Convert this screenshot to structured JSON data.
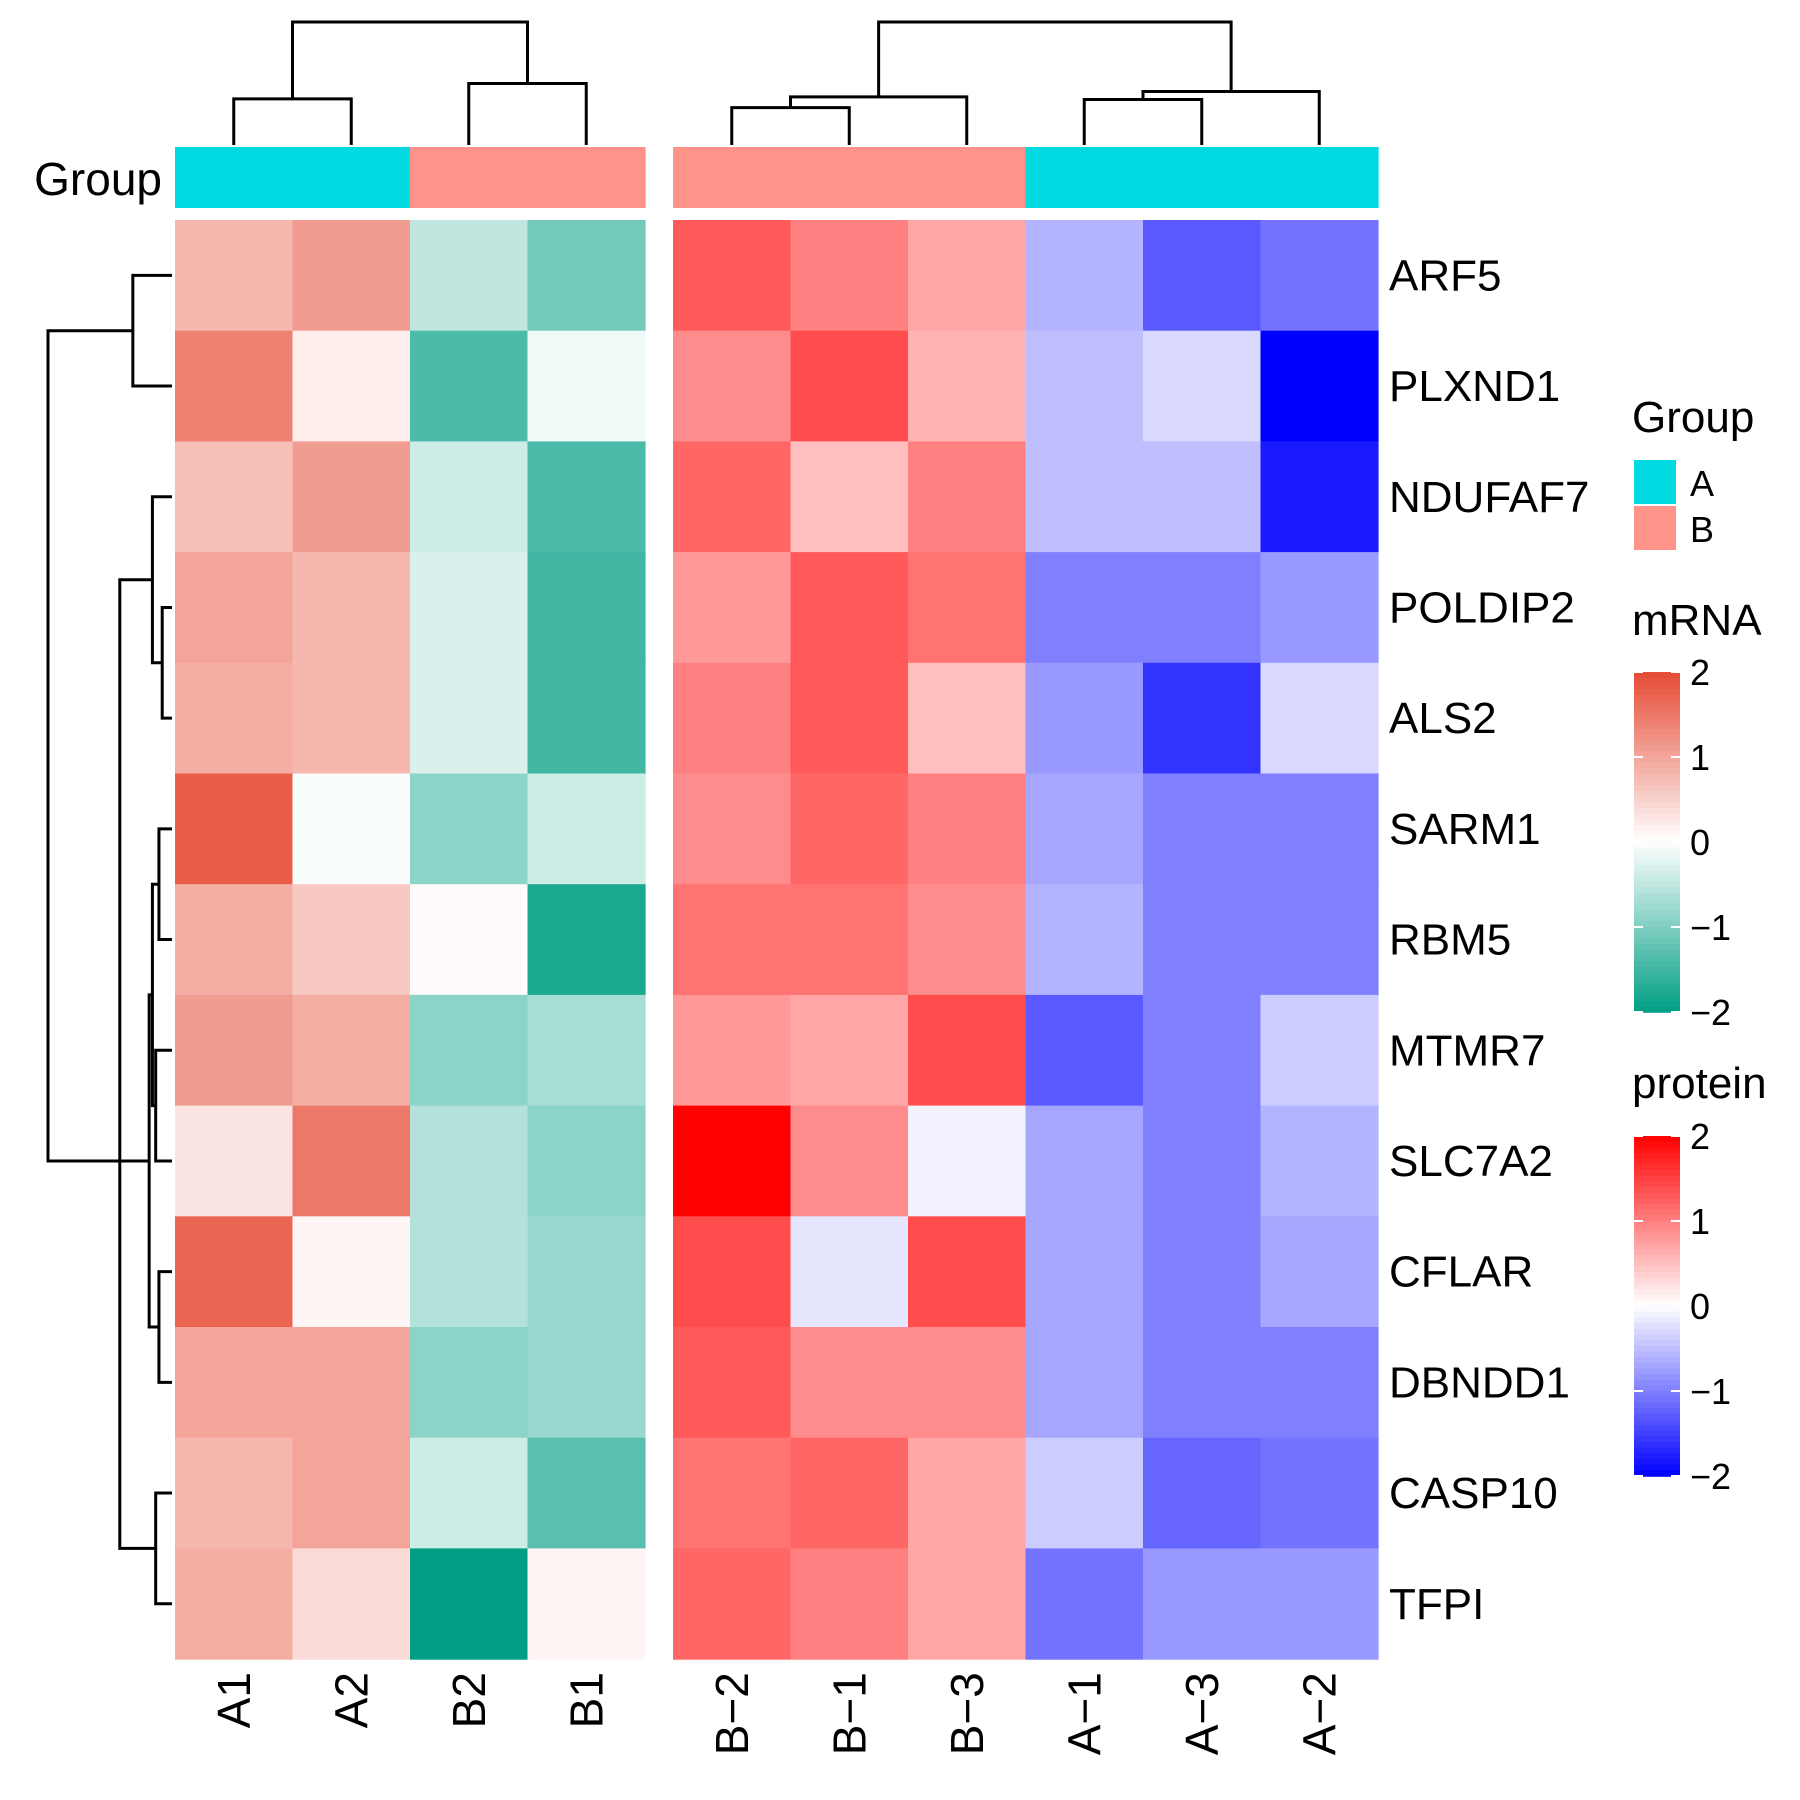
{
  "chart_data": {
    "type": "heatmap",
    "rows": [
      "ARF5",
      "PLXND1",
      "NDUFAF7",
      "POLDIP2",
      "ALS2",
      "SARM1",
      "RBM5",
      "MTMR7",
      "SLC7A2",
      "CFLAR",
      "DBNDD1",
      "CASP10",
      "TFPI"
    ],
    "annotation_label": "Group",
    "panels": [
      {
        "name": "mRNA",
        "columns": [
          "A1",
          "A2",
          "B2",
          "B1"
        ],
        "groups": [
          "A",
          "A",
          "B",
          "B"
        ],
        "values": [
          [
            0.8,
            1.1,
            -0.5,
            -1.1
          ],
          [
            1.4,
            0.2,
            -1.4,
            -0.1
          ],
          [
            0.7,
            1.1,
            -0.4,
            -1.4
          ],
          [
            1.0,
            0.8,
            -0.3,
            -1.5
          ],
          [
            0.9,
            0.8,
            -0.3,
            -1.5
          ],
          [
            1.8,
            -0.05,
            -0.9,
            -0.4
          ],
          [
            0.9,
            0.6,
            0.05,
            -1.8
          ],
          [
            1.1,
            0.9,
            -0.9,
            -0.7
          ],
          [
            0.3,
            1.5,
            -0.6,
            -0.9
          ],
          [
            1.7,
            0.1,
            -0.6,
            -0.8
          ],
          [
            1.0,
            1.0,
            -0.9,
            -0.8
          ],
          [
            0.8,
            1.0,
            -0.4,
            -1.3
          ],
          [
            0.9,
            0.4,
            -2.0,
            0.1
          ]
        ],
        "scale": {
          "min": -2,
          "max": 2,
          "low": "#009E84",
          "mid": "#FFFFFF",
          "high": "#E64B35",
          "ticks": [
            2,
            1,
            0,
            -1,
            -2
          ]
        }
      },
      {
        "name": "protein",
        "columns": [
          "B−2",
          "B−1",
          "B−3",
          "A−1",
          "A−3",
          "A−2"
        ],
        "groups": [
          "B",
          "B",
          "B",
          "A",
          "A",
          "A"
        ],
        "values": [
          [
            1.3,
            1.0,
            0.7,
            -0.6,
            -1.3,
            -1.1
          ],
          [
            0.9,
            1.4,
            0.6,
            -0.5,
            -0.3,
            -2.0
          ],
          [
            1.2,
            0.5,
            1.0,
            -0.5,
            -0.5,
            -1.8
          ],
          [
            0.8,
            1.3,
            1.1,
            -1.0,
            -1.0,
            -0.8
          ],
          [
            1.0,
            1.3,
            0.5,
            -0.8,
            -1.6,
            -0.3
          ],
          [
            0.9,
            1.2,
            1.0,
            -0.7,
            -1.0,
            -1.0
          ],
          [
            1.1,
            1.1,
            0.9,
            -0.6,
            -1.0,
            -1.0
          ],
          [
            0.8,
            0.7,
            1.4,
            -1.3,
            -1.0,
            -0.4
          ],
          [
            2.0,
            0.9,
            -0.1,
            -0.7,
            -1.0,
            -0.6
          ],
          [
            1.4,
            -0.2,
            1.4,
            -0.7,
            -1.0,
            -0.7
          ],
          [
            1.3,
            0.9,
            0.9,
            -0.7,
            -1.0,
            -1.0
          ],
          [
            1.1,
            1.2,
            0.7,
            -0.4,
            -1.2,
            -1.1
          ],
          [
            1.2,
            1.0,
            0.7,
            -1.1,
            -0.8,
            -0.8
          ]
        ],
        "scale": {
          "min": -2,
          "max": 2,
          "low": "#0000FF",
          "mid": "#FFFFFF",
          "high": "#FF0000",
          "ticks": [
            2,
            1,
            0,
            -1,
            -2
          ]
        }
      }
    ],
    "group_legend": {
      "title": "Group",
      "items": [
        {
          "label": "A",
          "color": "#00DAE0"
        },
        {
          "label": "B",
          "color": "#FF9289"
        }
      ]
    },
    "row_dendrogram": {
      "merges": [
        [
          0,
          1,
          0.6
        ],
        [
          3,
          4,
          0.15
        ],
        [
          5,
          6,
          0.2
        ],
        [
          7,
          8,
          0.25
        ],
        [
          2,
          14,
          0.3
        ],
        [
          16,
          15,
          0.3
        ],
        [
          9,
          10,
          0.2
        ],
        [
          11,
          12,
          0.25
        ],
        [
          19,
          18,
          0.35
        ],
        [
          17,
          20,
          0.8
        ],
        [
          13,
          21,
          1.9
        ]
      ],
      "leaf_order": [
        0,
        1,
        2,
        3,
        4,
        5,
        6,
        7,
        8,
        9,
        10,
        11,
        12
      ]
    },
    "mrna_col_dendrogram": {
      "merges": [
        [
          0,
          1,
          0.9
        ],
        [
          2,
          3,
          1.2
        ],
        [
          4,
          5,
          2.4
        ]
      ],
      "leaf_order": [
        0,
        1,
        2,
        3
      ]
    },
    "protein_col_dendrogram": {
      "merges": [
        [
          0,
          1,
          0.7
        ],
        [
          3,
          4,
          0.85
        ],
        [
          6,
          2,
          0.9
        ],
        [
          7,
          5,
          1.0
        ],
        [
          8,
          9,
          2.3
        ]
      ],
      "leaf_order": [
        0,
        1,
        2,
        3,
        4,
        5
      ]
    }
  }
}
